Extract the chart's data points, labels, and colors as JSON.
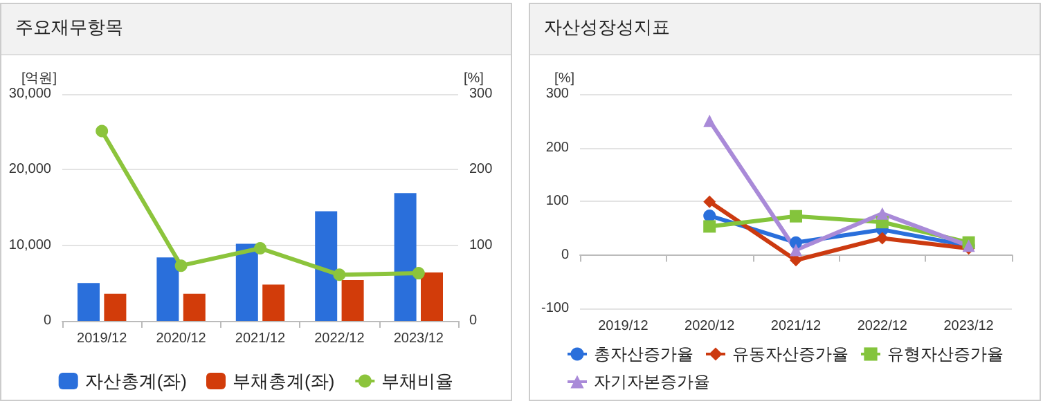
{
  "chart_data": [
    {
      "type": "bar",
      "title": "주요재무항목",
      "ylabel": "[억원]",
      "y2label": "[%]",
      "categories": [
        "2019/12",
        "2020/12",
        "2021/12",
        "2022/12",
        "2023/12"
      ],
      "series": [
        {
          "name": "자산총계(좌)",
          "type": "bar",
          "color": "#2a6fdb",
          "values": [
            5000,
            8400,
            10200,
            14500,
            16900
          ]
        },
        {
          "name": "부채총계(좌)",
          "type": "bar",
          "color": "#d23c0a",
          "values": [
            3600,
            3600,
            4800,
            5400,
            6400
          ]
        },
        {
          "name": "부채비율",
          "type": "line",
          "axis": "y2",
          "color": "#8cc43c",
          "marker": "circle",
          "values": [
            251,
            73,
            96,
            61,
            63
          ]
        }
      ],
      "ylim": [
        0,
        30000
      ],
      "yticks": [
        0,
        {
          "value": 10000,
          "label": "10,000"
        },
        {
          "value": 20000,
          "label": "20,000"
        },
        {
          "value": 30000,
          "label": "30,000"
        }
      ],
      "y2lim": [
        0,
        300
      ],
      "y2ticks": [
        0,
        100,
        200,
        300
      ],
      "grid": "y",
      "legend": "bottom"
    },
    {
      "type": "line",
      "title": "자산성장성지표",
      "ylabel": "[%]",
      "categories": [
        "2019/12",
        "2020/12",
        "2021/12",
        "2022/12",
        "2023/12"
      ],
      "series": [
        {
          "name": "총자산증가율",
          "color": "#2a6fdb",
          "marker": "circle",
          "values": [
            null,
            73,
            23,
            47,
            17
          ]
        },
        {
          "name": "유동자산증가율",
          "color": "#cc3a10",
          "marker": "diamond",
          "values": [
            null,
            99,
            -10,
            31,
            12
          ]
        },
        {
          "name": "유형자산증가율",
          "color": "#84c43c",
          "marker": "square",
          "values": [
            null,
            53,
            72,
            61,
            23
          ]
        },
        {
          "name": "자기자본증가율",
          "color": "#a98ad8",
          "marker": "triangle",
          "values": [
            null,
            250,
            9,
            77,
            17
          ]
        }
      ],
      "ylim": [
        -100,
        300
      ],
      "yticks": [
        -100,
        0,
        100,
        200,
        300
      ],
      "grid": "y",
      "legend": "bottom"
    }
  ]
}
